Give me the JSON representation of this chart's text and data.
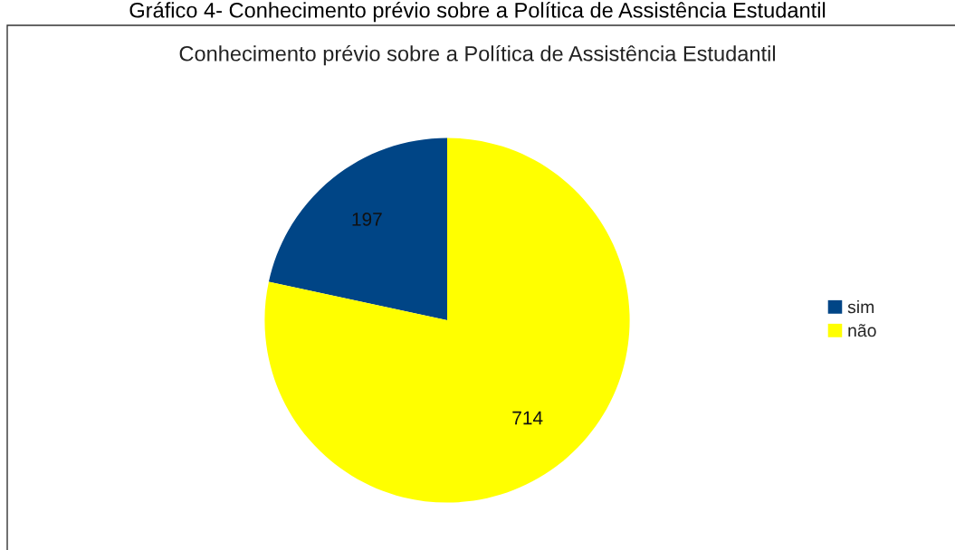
{
  "chart_data": {
    "type": "pie",
    "title": "Conhecimento prévio sobre a Política de Assistência Estudantil",
    "annotations": [
      "Gráfico 4- Conhecimento prévio sobre a Política de Assistência Estudantil"
    ],
    "categories": [
      "sim",
      "não"
    ],
    "values": [
      197,
      714
    ],
    "colors": [
      "#004586",
      "#ffff00"
    ],
    "data_labels": true,
    "legend": "right"
  }
}
